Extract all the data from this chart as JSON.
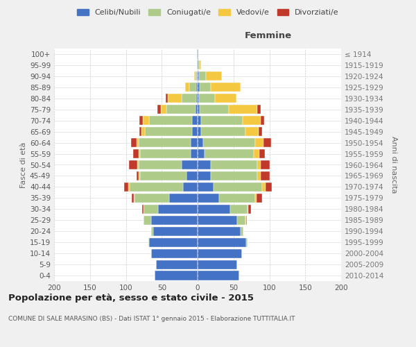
{
  "age_groups": [
    "0-4",
    "5-9",
    "10-14",
    "15-19",
    "20-24",
    "25-29",
    "30-34",
    "35-39",
    "40-44",
    "45-49",
    "50-54",
    "55-59",
    "60-64",
    "65-69",
    "70-74",
    "75-79",
    "80-84",
    "85-89",
    "90-94",
    "95-99",
    "100+"
  ],
  "birth_years": [
    "2010-2014",
    "2005-2009",
    "2000-2004",
    "1995-1999",
    "1990-1994",
    "1985-1989",
    "1980-1984",
    "1975-1979",
    "1970-1974",
    "1965-1969",
    "1960-1964",
    "1955-1959",
    "1950-1954",
    "1945-1949",
    "1940-1944",
    "1935-1939",
    "1930-1934",
    "1925-1929",
    "1920-1924",
    "1915-1919",
    "≤ 1914"
  ],
  "males": {
    "celibi": [
      60,
      58,
      65,
      68,
      62,
      65,
      55,
      40,
      20,
      15,
      22,
      10,
      10,
      8,
      8,
      3,
      2,
      2,
      1,
      1,
      1
    ],
    "coniugati": [
      0,
      0,
      0,
      1,
      3,
      10,
      20,
      48,
      75,
      65,
      60,
      70,
      72,
      65,
      60,
      40,
      20,
      10,
      2,
      0,
      0
    ],
    "vedovi": [
      0,
      0,
      0,
      0,
      0,
      0,
      0,
      1,
      2,
      2,
      2,
      2,
      3,
      5,
      8,
      8,
      20,
      5,
      2,
      0,
      0
    ],
    "divorziati": [
      0,
      0,
      0,
      0,
      0,
      0,
      2,
      3,
      5,
      3,
      12,
      8,
      8,
      3,
      5,
      5,
      2,
      0,
      0,
      0,
      0
    ]
  },
  "females": {
    "nubili": [
      58,
      55,
      62,
      68,
      60,
      55,
      45,
      30,
      22,
      18,
      18,
      10,
      8,
      5,
      5,
      3,
      2,
      3,
      2,
      1,
      1
    ],
    "coniugate": [
      0,
      0,
      0,
      2,
      4,
      12,
      25,
      50,
      68,
      65,
      65,
      68,
      72,
      62,
      58,
      40,
      22,
      15,
      10,
      2,
      0
    ],
    "vedove": [
      0,
      0,
      0,
      0,
      0,
      1,
      1,
      2,
      5,
      5,
      5,
      8,
      12,
      18,
      25,
      40,
      30,
      42,
      22,
      2,
      0
    ],
    "divorziate": [
      0,
      0,
      0,
      0,
      0,
      1,
      3,
      8,
      8,
      12,
      12,
      8,
      10,
      5,
      5,
      5,
      0,
      0,
      0,
      0,
      0
    ]
  },
  "colors": {
    "celibi": "#4472C4",
    "coniugati": "#AECB8A",
    "vedovi": "#F5C842",
    "divorziati": "#C0392B"
  },
  "xlim": 200,
  "title": "Popolazione per età, sesso e stato civile - 2015",
  "subtitle": "COMUNE DI SALE MARASINO (BS) - Dati ISTAT 1° gennaio 2015 - Elaborazione TUTTITALIA.IT",
  "ylabel_left": "Fasce di età",
  "ylabel_right": "Anni di nascita",
  "femmine_label": "Femmine",
  "bg_color": "#f0f0f0",
  "plot_bg_color": "#ffffff",
  "legend_labels": [
    "Celibi/Nubili",
    "Coniugati/e",
    "Vedovi/e",
    "Divorziati/e"
  ]
}
